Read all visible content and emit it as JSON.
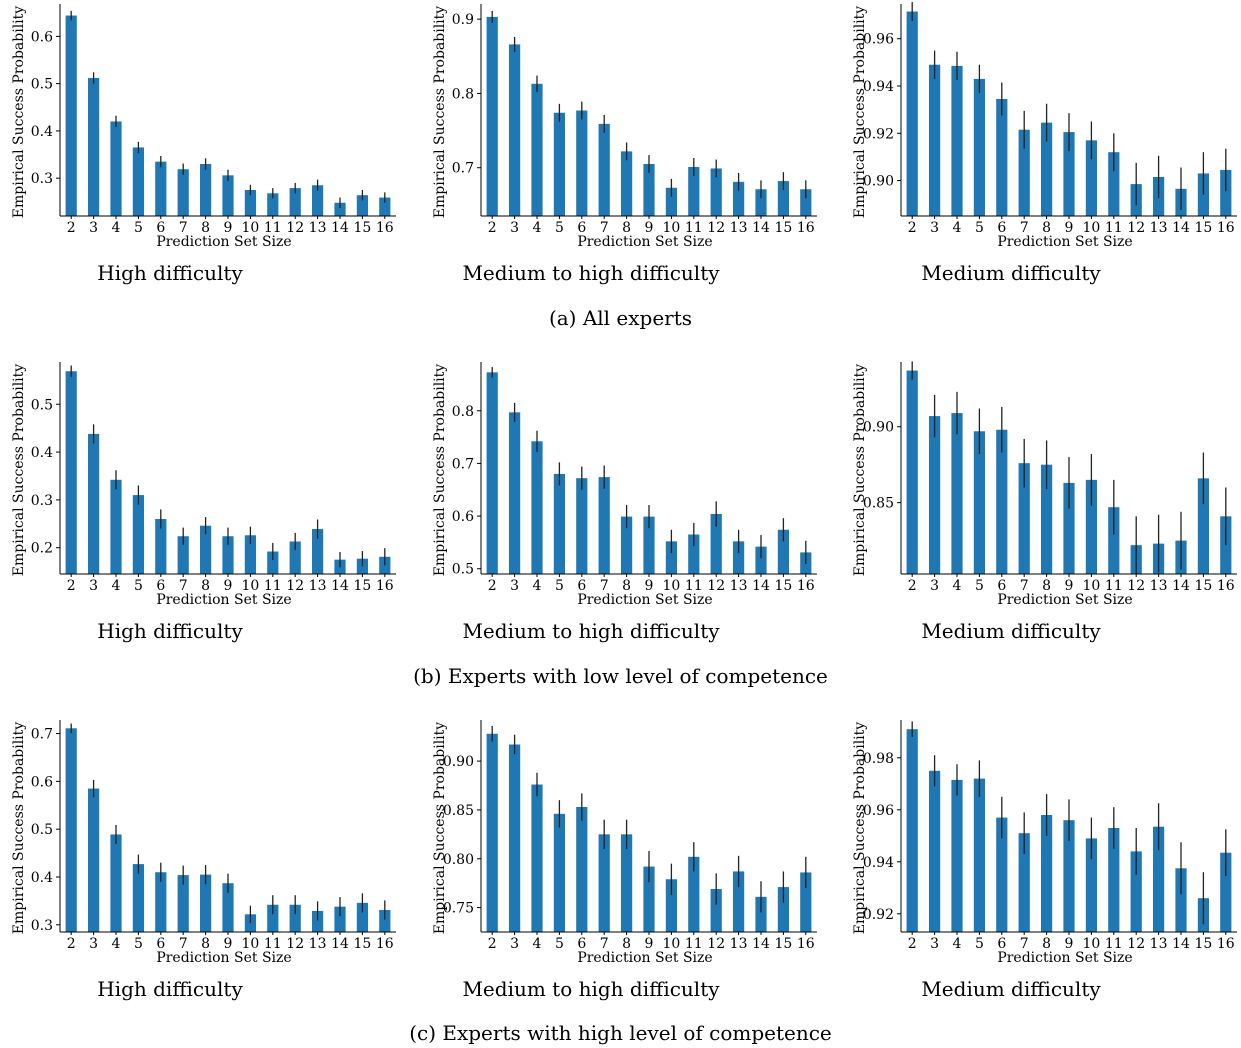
{
  "rows": [
    {
      "caption": "(a) All experts"
    },
    {
      "caption": "(b) Experts with low level of competence"
    },
    {
      "caption": "(c) Experts with high level of competence"
    }
  ],
  "chart_data": [
    {
      "type": "bar",
      "title": "High difficulty",
      "xlabel": "Prediction Set Size",
      "ylabel": "Empirical Success Probability",
      "categories": [
        "2",
        "3",
        "4",
        "5",
        "6",
        "7",
        "8",
        "9",
        "10",
        "11",
        "12",
        "13",
        "14",
        "15",
        "16"
      ],
      "values": [
        0.644,
        0.512,
        0.42,
        0.365,
        0.335,
        0.319,
        0.33,
        0.306,
        0.275,
        0.268,
        0.279,
        0.285,
        0.248,
        0.264,
        0.259
      ],
      "errors": [
        0.01,
        0.012,
        0.012,
        0.012,
        0.012,
        0.012,
        0.012,
        0.012,
        0.011,
        0.011,
        0.011,
        0.012,
        0.011,
        0.011,
        0.011
      ],
      "ylim": [
        0.22,
        0.66
      ],
      "yticks": [
        0.3,
        0.4,
        0.5,
        0.6
      ],
      "yticklabels": [
        "0.3",
        "0.4",
        "0.5",
        "0.6"
      ]
    },
    {
      "type": "bar",
      "title": "Medium to high difficulty",
      "xlabel": "Prediction Set Size",
      "ylabel": "Empirical Success Probability",
      "categories": [
        "2",
        "3",
        "4",
        "5",
        "6",
        "7",
        "8",
        "9",
        "10",
        "11",
        "12",
        "13",
        "14",
        "15",
        "16"
      ],
      "values": [
        0.903,
        0.866,
        0.813,
        0.774,
        0.777,
        0.759,
        0.722,
        0.705,
        0.673,
        0.701,
        0.699,
        0.681,
        0.671,
        0.682,
        0.671
      ],
      "errors": [
        0.008,
        0.01,
        0.011,
        0.012,
        0.012,
        0.012,
        0.012,
        0.012,
        0.012,
        0.012,
        0.012,
        0.012,
        0.012,
        0.012,
        0.012
      ],
      "ylim": [
        0.635,
        0.915
      ],
      "yticks": [
        0.7,
        0.8,
        0.9
      ],
      "yticklabels": [
        "0.7",
        "0.8",
        "0.9"
      ]
    },
    {
      "type": "bar",
      "title": "Medium difficulty",
      "xlabel": "Prediction Set Size",
      "ylabel": "Empirical Success Probability",
      "categories": [
        "2",
        "3",
        "4",
        "5",
        "6",
        "7",
        "8",
        "9",
        "10",
        "11",
        "12",
        "13",
        "14",
        "15",
        "16"
      ],
      "values": [
        0.9715,
        0.949,
        0.9485,
        0.943,
        0.9345,
        0.9215,
        0.9245,
        0.9205,
        0.917,
        0.912,
        0.8985,
        0.9015,
        0.8965,
        0.903,
        0.9045
      ],
      "errors": [
        0.004,
        0.006,
        0.006,
        0.006,
        0.007,
        0.008,
        0.008,
        0.008,
        0.008,
        0.008,
        0.009,
        0.009,
        0.009,
        0.009,
        0.009
      ],
      "ylim": [
        0.885,
        0.973
      ],
      "yticks": [
        0.9,
        0.92,
        0.94,
        0.96
      ],
      "yticklabels": [
        "0.90",
        "0.92",
        "0.94",
        "0.96"
      ]
    },
    {
      "type": "bar",
      "title": "High difficulty",
      "xlabel": "Prediction Set Size",
      "ylabel": "Empirical Success Probability",
      "categories": [
        "2",
        "3",
        "4",
        "5",
        "6",
        "7",
        "8",
        "9",
        "10",
        "11",
        "12",
        "13",
        "14",
        "15",
        "16"
      ],
      "values": [
        0.569,
        0.438,
        0.342,
        0.31,
        0.26,
        0.224,
        0.246,
        0.224,
        0.226,
        0.192,
        0.213,
        0.239,
        0.175,
        0.177,
        0.181
      ],
      "errors": [
        0.012,
        0.02,
        0.02,
        0.02,
        0.02,
        0.018,
        0.018,
        0.018,
        0.018,
        0.018,
        0.018,
        0.02,
        0.016,
        0.016,
        0.018
      ],
      "ylim": [
        0.145,
        0.58
      ],
      "yticks": [
        0.2,
        0.3,
        0.4,
        0.5
      ],
      "yticklabels": [
        "0.2",
        "0.3",
        "0.4",
        "0.5"
      ]
    },
    {
      "type": "bar",
      "title": "Medium to high difficulty",
      "xlabel": "Prediction Set Size",
      "ylabel": "Empirical Success Probability",
      "categories": [
        "2",
        "3",
        "4",
        "5",
        "6",
        "7",
        "8",
        "9",
        "10",
        "11",
        "12",
        "13",
        "14",
        "15",
        "16"
      ],
      "values": [
        0.873,
        0.797,
        0.742,
        0.68,
        0.672,
        0.674,
        0.599,
        0.599,
        0.552,
        0.565,
        0.604,
        0.552,
        0.542,
        0.574,
        0.531
      ],
      "errors": [
        0.01,
        0.018,
        0.02,
        0.022,
        0.022,
        0.022,
        0.022,
        0.022,
        0.022,
        0.022,
        0.024,
        0.022,
        0.022,
        0.022,
        0.022
      ],
      "ylim": [
        0.49,
        0.885
      ],
      "yticks": [
        0.5,
        0.6,
        0.7,
        0.8
      ],
      "yticklabels": [
        "0.5",
        "0.6",
        "0.7",
        "0.8"
      ]
    },
    {
      "type": "bar",
      "title": "Medium difficulty",
      "xlabel": "Prediction Set Size",
      "ylabel": "Empirical Success Probability",
      "categories": [
        "2",
        "3",
        "4",
        "5",
        "6",
        "7",
        "8",
        "9",
        "10",
        "11",
        "12",
        "13",
        "14",
        "15",
        "16"
      ],
      "values": [
        0.937,
        0.907,
        0.909,
        0.897,
        0.898,
        0.876,
        0.875,
        0.863,
        0.865,
        0.847,
        0.822,
        0.823,
        0.825,
        0.866,
        0.841
      ],
      "errors": [
        0.006,
        0.014,
        0.014,
        0.015,
        0.015,
        0.016,
        0.016,
        0.017,
        0.017,
        0.018,
        0.019,
        0.019,
        0.019,
        0.017,
        0.019
      ],
      "ylim": [
        0.803,
        0.94
      ],
      "yticks": [
        0.85,
        0.9
      ],
      "yticklabels": [
        "0.85",
        "0.90"
      ]
    },
    {
      "type": "bar",
      "title": "High difficulty",
      "xlabel": "Prediction Set Size",
      "ylabel": "Empirical Success Probability",
      "categories": [
        "2",
        "3",
        "4",
        "5",
        "6",
        "7",
        "8",
        "9",
        "10",
        "11",
        "12",
        "13",
        "14",
        "15",
        "16"
      ],
      "values": [
        0.711,
        0.585,
        0.489,
        0.427,
        0.41,
        0.404,
        0.405,
        0.387,
        0.322,
        0.342,
        0.342,
        0.329,
        0.338,
        0.346,
        0.331
      ],
      "errors": [
        0.01,
        0.018,
        0.02,
        0.02,
        0.02,
        0.02,
        0.02,
        0.02,
        0.018,
        0.02,
        0.02,
        0.02,
        0.02,
        0.02,
        0.02
      ],
      "ylim": [
        0.285,
        0.72
      ],
      "yticks": [
        0.3,
        0.4,
        0.5,
        0.6,
        0.7
      ],
      "yticklabels": [
        "0.3",
        "0.4",
        "0.5",
        "0.6",
        "0.7"
      ]
    },
    {
      "type": "bar",
      "title": "Medium to high difficulty",
      "xlabel": "Prediction Set Size",
      "ylabel": "Empirical Success Probability",
      "categories": [
        "2",
        "3",
        "4",
        "5",
        "6",
        "7",
        "8",
        "9",
        "10",
        "11",
        "12",
        "13",
        "14",
        "15",
        "16"
      ],
      "values": [
        0.928,
        0.917,
        0.876,
        0.846,
        0.853,
        0.825,
        0.825,
        0.792,
        0.779,
        0.802,
        0.769,
        0.787,
        0.761,
        0.771,
        0.786
      ],
      "errors": [
        0.008,
        0.01,
        0.012,
        0.014,
        0.014,
        0.015,
        0.015,
        0.016,
        0.016,
        0.015,
        0.016,
        0.016,
        0.016,
        0.016,
        0.016
      ],
      "ylim": [
        0.725,
        0.938
      ],
      "yticks": [
        0.75,
        0.8,
        0.85,
        0.9
      ],
      "yticklabels": [
        "0.75",
        "0.80",
        "0.85",
        "0.90"
      ]
    },
    {
      "type": "bar",
      "title": "Medium difficulty",
      "xlabel": "Prediction Set Size",
      "ylabel": "Empirical Success Probability",
      "categories": [
        "2",
        "3",
        "4",
        "5",
        "6",
        "7",
        "8",
        "9",
        "10",
        "11",
        "12",
        "13",
        "14",
        "15",
        "16"
      ],
      "values": [
        0.991,
        0.975,
        0.9715,
        0.972,
        0.957,
        0.951,
        0.958,
        0.956,
        0.949,
        0.953,
        0.944,
        0.9535,
        0.9375,
        0.926,
        0.9435
      ],
      "errors": [
        0.003,
        0.006,
        0.006,
        0.007,
        0.008,
        0.008,
        0.008,
        0.008,
        0.008,
        0.008,
        0.009,
        0.009,
        0.01,
        0.01,
        0.009
      ],
      "ylim": [
        0.913,
        0.993
      ],
      "yticks": [
        0.92,
        0.94,
        0.96,
        0.98
      ],
      "yticklabels": [
        "0.92",
        "0.94",
        "0.96",
        "0.98"
      ]
    }
  ]
}
